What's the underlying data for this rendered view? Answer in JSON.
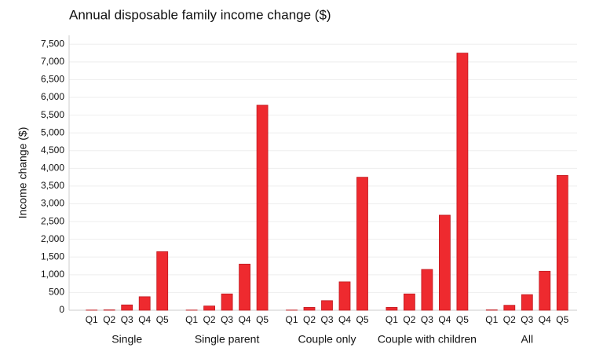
{
  "chart_data": {
    "type": "grouped-bar",
    "title": "Annual disposable family income change ($)",
    "y_label": "Income change ($)",
    "color": "#ee2a2f",
    "grid": true,
    "ylim": [
      0,
      7750
    ],
    "yticks": [
      0,
      500,
      {
        "value": 1000,
        "label": "1,000"
      },
      {
        "value": 1500,
        "label": "1,500"
      },
      {
        "value": 2000,
        "label": "2,000"
      },
      {
        "value": 2500,
        "label": "2,500"
      },
      {
        "value": 3000,
        "label": "3,000"
      },
      {
        "value": 3500,
        "label": "3,500"
      },
      {
        "value": 4000,
        "label": "4,000"
      },
      {
        "value": 4500,
        "label": "4,500"
      },
      {
        "value": 5000,
        "label": "5,000"
      },
      {
        "value": 5500,
        "label": "5,500"
      },
      {
        "value": 6000,
        "label": "6,000"
      },
      {
        "value": 6500,
        "label": "6,500"
      },
      {
        "value": 7000,
        "label": "7,000"
      },
      {
        "value": 7500,
        "label": "7,500"
      }
    ],
    "groups": [
      {
        "name": "Single",
        "categories": [
          "Q1",
          "Q2",
          "Q3",
          "Q4",
          "Q5"
        ],
        "values": [
          5,
          10,
          150,
          380,
          1650
        ]
      },
      {
        "name": "Single parent",
        "categories": [
          "Q1",
          "Q2",
          "Q3",
          "Q4",
          "Q5"
        ],
        "values": [
          5,
          120,
          460,
          1300,
          5780
        ]
      },
      {
        "name": "Couple only",
        "categories": [
          "Q1",
          "Q2",
          "Q3",
          "Q4",
          "Q5"
        ],
        "values": [
          5,
          80,
          270,
          800,
          3750
        ]
      },
      {
        "name": "Couple with children",
        "categories": [
          "Q1",
          "Q2",
          "Q3",
          "Q4",
          "Q5"
        ],
        "values": [
          80,
          460,
          1150,
          2680,
          7250
        ]
      },
      {
        "name": "All",
        "categories": [
          "Q1",
          "Q2",
          "Q3",
          "Q4",
          "Q5"
        ],
        "values": [
          10,
          140,
          440,
          1100,
          3800
        ]
      }
    ]
  }
}
